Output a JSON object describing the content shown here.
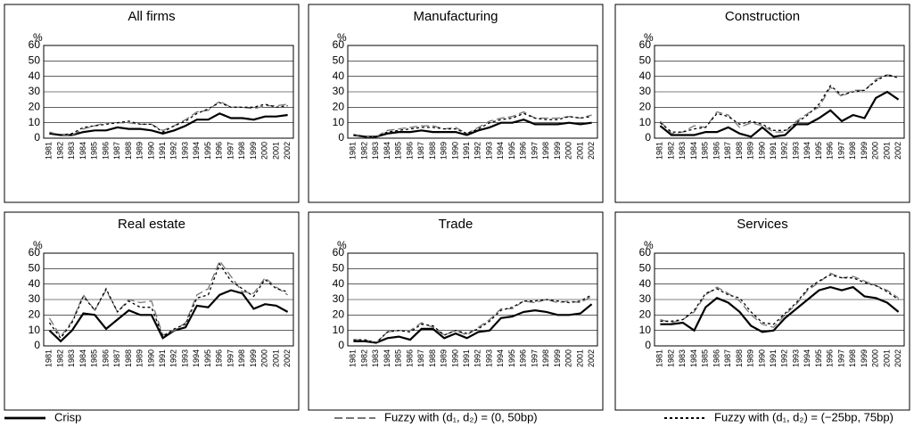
{
  "chart_data": [
    {
      "type": "line",
      "title": "All firms",
      "ylabel": "%",
      "ylim": [
        0,
        60
      ],
      "yticks": [
        0,
        10,
        20,
        30,
        40,
        50,
        60
      ],
      "grid": true,
      "categories": [
        "1981",
        "1982",
        "1983",
        "1984",
        "1985",
        "1986",
        "1987",
        "1988",
        "1989",
        "1990",
        "1991",
        "1992",
        "1993",
        "1994",
        "1995",
        "1996",
        "1997",
        "1998",
        "1999",
        "2000",
        "2001",
        "2002"
      ],
      "series": [
        {
          "name": "Crisp",
          "color": "#000000",
          "style": "solid",
          "values": [
            3,
            2,
            2,
            4,
            5,
            5,
            7,
            6,
            6,
            5,
            3,
            5,
            8,
            12,
            12,
            16,
            13,
            13,
            12,
            14,
            14,
            15
          ]
        },
        {
          "name": "Fuzzy with (d₁, d₂) = (0, 50bp)",
          "color": "#777777",
          "style": "dashed",
          "values": [
            4,
            2,
            2,
            6,
            8,
            10,
            10,
            10,
            9,
            9,
            5,
            8,
            12,
            17,
            18,
            24,
            20,
            20,
            19,
            21,
            21,
            22
          ]
        },
        {
          "name": "Fuzzy with (d₁, d₂) = (−25bp, 75bp)",
          "color": "#000000",
          "style": "dotted",
          "values": [
            3,
            2,
            3,
            7,
            8,
            9,
            10,
            11,
            9,
            9,
            4,
            8,
            11,
            16,
            19,
            23,
            20,
            20,
            20,
            22,
            20,
            21
          ]
        }
      ]
    },
    {
      "type": "line",
      "title": "Manufacturing",
      "ylabel": "%",
      "ylim": [
        0,
        60
      ],
      "yticks": [
        0,
        10,
        20,
        30,
        40,
        50,
        60
      ],
      "grid": true,
      "categories": [
        "1981",
        "1982",
        "1983",
        "1984",
        "1985",
        "1986",
        "1987",
        "1988",
        "1989",
        "1990",
        "1991",
        "1992",
        "1993",
        "1994",
        "1995",
        "1996",
        "1997",
        "1998",
        "1999",
        "2000",
        "2001",
        "2002"
      ],
      "series": [
        {
          "name": "Crisp",
          "color": "#000000",
          "style": "solid",
          "values": [
            2,
            1,
            1,
            3,
            4,
            4,
            5,
            4,
            4,
            4,
            2,
            5,
            7,
            10,
            10,
            12,
            9,
            9,
            9,
            10,
            9,
            10
          ]
        },
        {
          "name": "Fuzzy with (d₁, d₂) = (0, 50bp)",
          "color": "#777777",
          "style": "dashed",
          "values": [
            2,
            1,
            1,
            5,
            6,
            7,
            8,
            8,
            6,
            7,
            3,
            7,
            11,
            13,
            14,
            17,
            13,
            13,
            13,
            14,
            13,
            15
          ]
        },
        {
          "name": "Fuzzy with (d₁, d₂) = (−25bp, 75bp)",
          "color": "#000000",
          "style": "dotted",
          "values": [
            2,
            1,
            1,
            4,
            5,
            6,
            7,
            7,
            6,
            6,
            3,
            6,
            10,
            12,
            13,
            16,
            13,
            12,
            12,
            14,
            13,
            14
          ]
        }
      ]
    },
    {
      "type": "line",
      "title": "Construction",
      "ylabel": "%",
      "ylim": [
        0,
        60
      ],
      "yticks": [
        0,
        10,
        20,
        30,
        40,
        50,
        60
      ],
      "grid": true,
      "categories": [
        "1981",
        "1982",
        "1983",
        "1984",
        "1985",
        "1986",
        "1987",
        "1988",
        "1989",
        "1990",
        "1991",
        "1992",
        "1993",
        "1994",
        "1995",
        "1996",
        "1997",
        "1998",
        "1999",
        "2000",
        "2001",
        "2002"
      ],
      "series": [
        {
          "name": "Crisp",
          "color": "#000000",
          "style": "solid",
          "values": [
            8,
            2,
            2,
            2,
            4,
            4,
            7,
            3,
            1,
            7,
            1,
            2,
            9,
            9,
            13,
            18,
            11,
            15,
            13,
            26,
            30,
            25
          ]
        },
        {
          "name": "Fuzzy with (d₁, d₂) = (0, 50bp)",
          "color": "#777777",
          "style": "dashed",
          "values": [
            11,
            3,
            4,
            8,
            7,
            17,
            15,
            7,
            10,
            8,
            4,
            4,
            11,
            16,
            20,
            33,
            27,
            31,
            31,
            38,
            41,
            40
          ]
        },
        {
          "name": "Fuzzy with (d₁, d₂) = (−25bp, 75bp)",
          "color": "#000000",
          "style": "dotted",
          "values": [
            10,
            4,
            4,
            6,
            7,
            16,
            14,
            9,
            11,
            9,
            5,
            5,
            10,
            15,
            22,
            34,
            28,
            30,
            31,
            37,
            41,
            39
          ]
        }
      ]
    },
    {
      "type": "line",
      "title": "Real estate",
      "ylabel": "%",
      "ylim": [
        0,
        60
      ],
      "yticks": [
        0,
        10,
        20,
        30,
        40,
        50,
        60
      ],
      "grid": true,
      "categories": [
        "1981",
        "1982",
        "1983",
        "1984",
        "1985",
        "1986",
        "1987",
        "1988",
        "1989",
        "1990",
        "1991",
        "1992",
        "1993",
        "1994",
        "1995",
        "1996",
        "1997",
        "1998",
        "1999",
        "2000",
        "2001",
        "2002"
      ],
      "series": [
        {
          "name": "Crisp",
          "color": "#000000",
          "style": "solid",
          "values": [
            10,
            3,
            10,
            21,
            20,
            11,
            17,
            23,
            20,
            20,
            5,
            10,
            12,
            26,
            25,
            33,
            36,
            34,
            24,
            27,
            26,
            22
          ]
        },
        {
          "name": "Fuzzy with (d₁, d₂) = (0, 50bp)",
          "color": "#777777",
          "style": "dashed",
          "values": [
            18,
            6,
            16,
            33,
            23,
            36,
            22,
            30,
            28,
            29,
            7,
            10,
            15,
            33,
            37,
            55,
            45,
            35,
            34,
            44,
            38,
            33
          ]
        },
        {
          "name": "Fuzzy with (d₁, d₂) = (−25bp, 75bp)",
          "color": "#000000",
          "style": "dotted",
          "values": [
            15,
            5,
            15,
            32,
            23,
            37,
            22,
            29,
            25,
            25,
            6,
            11,
            14,
            31,
            33,
            53,
            42,
            37,
            32,
            43,
            37,
            35
          ]
        }
      ]
    },
    {
      "type": "line",
      "title": "Trade",
      "ylabel": "%",
      "ylim": [
        0,
        60
      ],
      "yticks": [
        0,
        10,
        20,
        30,
        40,
        50,
        60
      ],
      "grid": true,
      "categories": [
        "1981",
        "1982",
        "1983",
        "1984",
        "1985",
        "1986",
        "1987",
        "1988",
        "1989",
        "1990",
        "1991",
        "1992",
        "1993",
        "1994",
        "1995",
        "1996",
        "1997",
        "1998",
        "1999",
        "2000",
        "2001",
        "2002"
      ],
      "series": [
        {
          "name": "Crisp",
          "color": "#000000",
          "style": "solid",
          "values": [
            3,
            3,
            2,
            5,
            6,
            4,
            11,
            11,
            5,
            8,
            5,
            9,
            10,
            18,
            19,
            22,
            23,
            22,
            20,
            20,
            21,
            27
          ]
        },
        {
          "name": "Fuzzy with (d₁, d₂) = (0, 50bp)",
          "color": "#777777",
          "style": "dashed",
          "values": [
            4,
            4,
            2,
            9,
            10,
            10,
            15,
            12,
            7,
            10,
            7,
            12,
            17,
            24,
            24,
            29,
            28,
            30,
            28,
            29,
            28,
            32
          ]
        },
        {
          "name": "Fuzzy with (d₁, d₂) = (−25bp, 75bp)",
          "color": "#000000",
          "style": "dotted",
          "values": [
            4,
            4,
            2,
            9,
            10,
            9,
            14,
            13,
            7,
            10,
            8,
            11,
            16,
            23,
            25,
            29,
            29,
            30,
            29,
            28,
            29,
            33
          ]
        }
      ]
    },
    {
      "type": "line",
      "title": "Services",
      "ylabel": "%",
      "ylim": [
        0,
        60
      ],
      "yticks": [
        0,
        10,
        20,
        30,
        40,
        50,
        60
      ],
      "grid": true,
      "categories": [
        "1981",
        "1982",
        "1983",
        "1984",
        "1985",
        "1986",
        "1987",
        "1988",
        "1989",
        "1990",
        "1991",
        "1992",
        "1993",
        "1994",
        "1995",
        "1996",
        "1997",
        "1998",
        "1999",
        "2000",
        "2001",
        "2002"
      ],
      "series": [
        {
          "name": "Crisp",
          "color": "#000000",
          "style": "solid",
          "values": [
            14,
            14,
            15,
            10,
            25,
            31,
            28,
            22,
            13,
            9,
            10,
            18,
            24,
            30,
            36,
            38,
            36,
            38,
            32,
            31,
            28,
            22
          ]
        },
        {
          "name": "Fuzzy with (d₁, d₂) = (0, 50bp)",
          "color": "#777777",
          "style": "dashed",
          "values": [
            17,
            15,
            17,
            22,
            33,
            38,
            34,
            29,
            20,
            14,
            12,
            20,
            27,
            36,
            41,
            47,
            44,
            45,
            42,
            39,
            36,
            31
          ]
        },
        {
          "name": "Fuzzy with (d₁, d₂) = (−25bp, 75bp)",
          "color": "#000000",
          "style": "dotted",
          "values": [
            16,
            16,
            17,
            23,
            34,
            37,
            33,
            31,
            22,
            15,
            14,
            21,
            28,
            37,
            42,
            46,
            44,
            44,
            41,
            39,
            35,
            30
          ]
        }
      ]
    }
  ]
}
